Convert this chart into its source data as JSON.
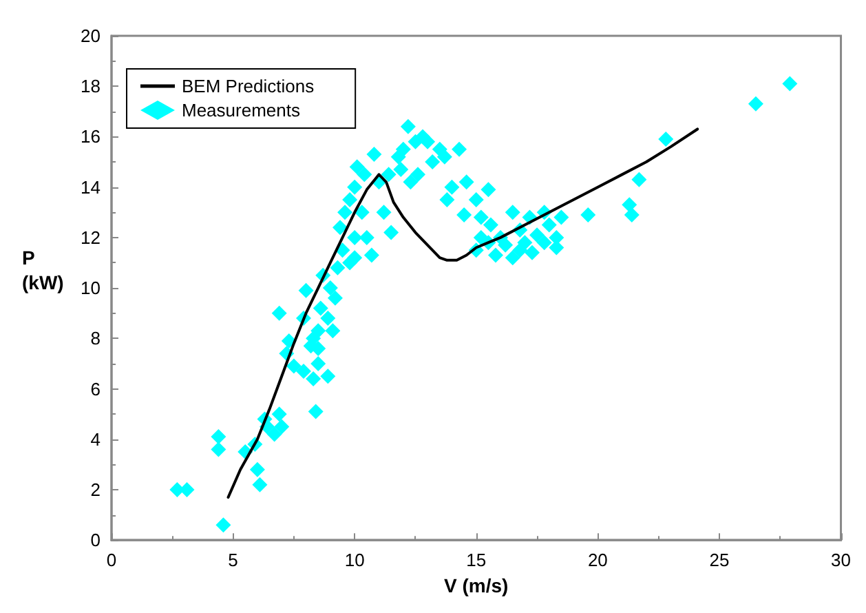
{
  "chart_data": {
    "type": "scatter",
    "xlabel": "V (m/s)",
    "ylabel": "P (kW)",
    "xlim": [
      0,
      30
    ],
    "xticks": [
      0,
      5,
      10,
      15,
      20,
      25,
      30
    ],
    "ylim": [
      0,
      20
    ],
    "yticks": [
      0,
      2,
      4,
      6,
      8,
      10,
      12,
      14,
      16,
      18,
      20
    ],
    "grid": false,
    "legend": "top left",
    "series": [
      {
        "name": "BEM Predictions",
        "type": "line",
        "marker": "none",
        "line_style": "solid",
        "color": "#000000",
        "x": [
          4.8,
          5.3,
          6,
          6.5,
          7,
          7.5,
          8,
          8.5,
          9,
          9.5,
          10,
          10.5,
          11,
          11.3,
          11.6,
          12,
          12.5,
          13,
          13.5,
          13.8,
          14.2,
          14.6,
          15,
          15.5,
          16,
          17,
          18,
          19,
          20,
          21,
          22,
          23,
          24.1
        ],
        "values": [
          1.7,
          2.8,
          4,
          5.2,
          6.5,
          7.8,
          9,
          10,
          11,
          12,
          13,
          13.9,
          14.5,
          14.2,
          13.4,
          12.8,
          12.2,
          11.7,
          11.2,
          11.1,
          11.1,
          11.3,
          11.6,
          11.8,
          12,
          12.5,
          13,
          13.5,
          14,
          14.5,
          15,
          15.6,
          16.3
        ]
      },
      {
        "name": "Measurements",
        "marker": "diamond",
        "color": "#00ffff",
        "x": [
          2.7,
          3.1,
          4.4,
          4.4,
          4.6,
          5.5,
          5.9,
          6.1,
          6,
          6.3,
          6.4,
          6.7,
          6.9,
          7,
          6.9,
          7.2,
          7.3,
          7.5,
          7.9,
          7.9,
          8.2,
          8.3,
          8.4,
          8.5,
          8.5,
          8.9,
          8,
          8.3,
          8.5,
          9.1,
          8.6,
          8.9,
          9,
          9.2,
          8.7,
          9.3,
          9.5,
          9.8,
          10,
          10,
          9.4,
          9.6,
          9.8,
          10,
          10.3,
          10.5,
          10.7,
          10.1,
          10.4,
          10.8,
          11,
          11.2,
          11.5,
          11.4,
          11.8,
          12,
          12.2,
          12.5,
          12.8,
          13,
          13.2,
          12.6,
          12.3,
          11.9,
          13.5,
          13.7,
          14.3,
          14,
          14.6,
          13.8,
          15,
          15.5,
          14.5,
          15.2,
          15.6,
          15.5,
          15,
          15.2,
          15.8,
          16,
          16.2,
          16.5,
          16.8,
          16.8,
          17,
          17.3,
          17.5,
          17.8,
          17.2,
          16.5,
          17.8,
          18,
          18.3,
          18.5,
          18.3,
          19.6,
          21.3,
          21.4,
          21.7,
          22.8,
          26.5,
          27.9
        ],
        "values": [
          2,
          2,
          4.1,
          3.6,
          0.6,
          3.5,
          3.8,
          2.2,
          2.8,
          4.8,
          4.5,
          4.2,
          5,
          4.5,
          9,
          7.4,
          7.9,
          6.9,
          6.7,
          8.8,
          7.7,
          6.4,
          5.1,
          7.6,
          7,
          6.5,
          9.9,
          8,
          8.3,
          8.3,
          9.2,
          8.8,
          10,
          9.6,
          10.5,
          10.8,
          11.5,
          11,
          11.2,
          12,
          12.4,
          13,
          13.5,
          14,
          13,
          12,
          11.3,
          14.8,
          14.5,
          15.3,
          14.2,
          13,
          12.2,
          14.5,
          15.2,
          15.5,
          16.4,
          15.8,
          16,
          15.8,
          15,
          14.5,
          14.2,
          14.7,
          15.5,
          15.2,
          15.5,
          14,
          14.2,
          13.5,
          13.5,
          13.9,
          12.9,
          12.8,
          12.5,
          11.8,
          11.5,
          12,
          11.3,
          12,
          11.7,
          11.2,
          12.3,
          11.5,
          11.8,
          11.4,
          12.1,
          11.8,
          12.8,
          13,
          13,
          12.5,
          12,
          12.8,
          11.6,
          12.9,
          13.3,
          12.9,
          14.3,
          15.9,
          17.3,
          18.1
        ]
      }
    ]
  }
}
